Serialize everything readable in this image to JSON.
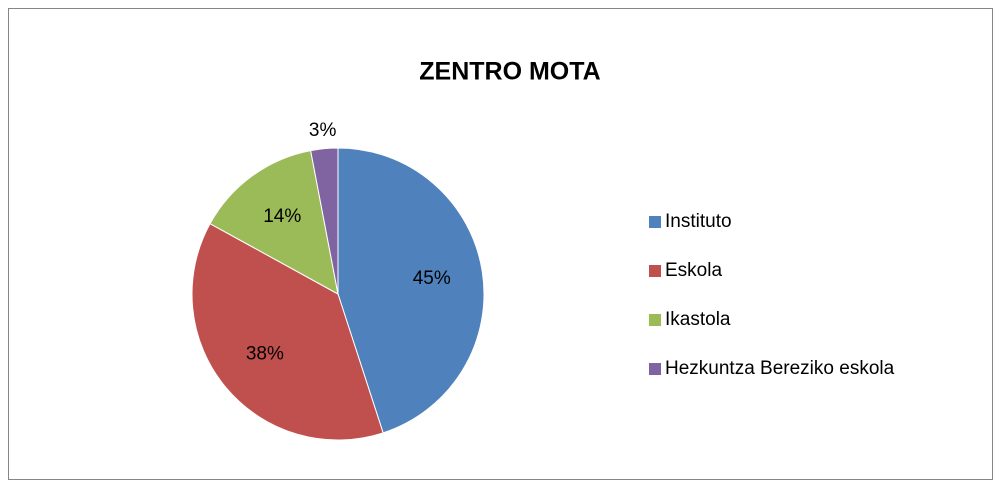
{
  "chart_data": {
    "type": "pie",
    "title": "ZENTRO MOTA",
    "categories": [
      "Instituto",
      "Eskola",
      "Ikastola",
      "Hezkuntza Bereziko eskola"
    ],
    "values": [
      45,
      38,
      14,
      3
    ],
    "value_labels": [
      "45%",
      "38%",
      "14%",
      "3%"
    ],
    "colors": [
      "#4f81bd",
      "#c0504d",
      "#9bbb59",
      "#8064a2"
    ],
    "legend": "right"
  }
}
